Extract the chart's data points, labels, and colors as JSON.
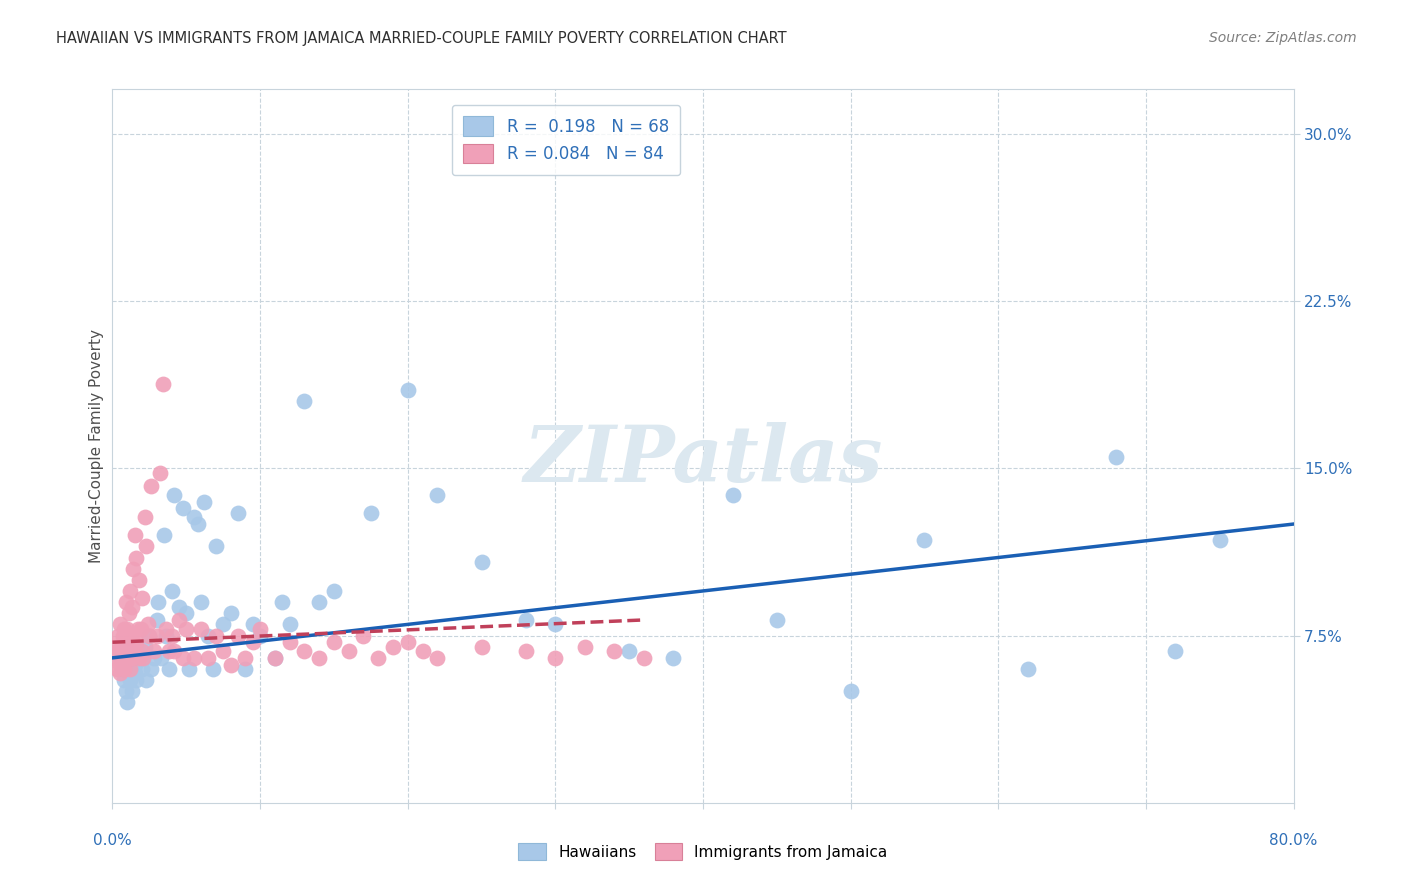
{
  "title": "HAWAIIAN VS IMMIGRANTS FROM JAMAICA MARRIED-COUPLE FAMILY POVERTY CORRELATION CHART",
  "source": "Source: ZipAtlas.com",
  "ylabel": "Married-Couple Family Poverty",
  "xlim": [
    0.0,
    0.8
  ],
  "ylim": [
    0.0,
    0.32
  ],
  "yticks": [
    0.075,
    0.15,
    0.225,
    0.3
  ],
  "ytick_labels": [
    "7.5%",
    "15.0%",
    "22.5%",
    "30.0%"
  ],
  "legend1_R": "0.198",
  "legend1_N": "68",
  "legend2_R": "0.084",
  "legend2_N": "84",
  "hawaiian_color": "#a8c8e8",
  "jamaica_color": "#f0a0b8",
  "trendline_hawaii_color": "#1a5fb4",
  "trendline_jamaica_color": "#c0405a",
  "watermark": "ZIPatlas",
  "watermark_color": "#dce8f0",
  "background_color": "#ffffff",
  "grid_color": "#c8d4dc",
  "title_color": "#303030",
  "axis_label_color": "#505050",
  "tick_label_color": "#3070b8",
  "hawaiians_x": [
    0.005,
    0.007,
    0.008,
    0.009,
    0.01,
    0.01,
    0.01,
    0.011,
    0.012,
    0.013,
    0.015,
    0.015,
    0.016,
    0.018,
    0.02,
    0.021,
    0.022,
    0.023,
    0.025,
    0.026,
    0.028,
    0.03,
    0.031,
    0.033,
    0.035,
    0.036,
    0.038,
    0.04,
    0.042,
    0.045,
    0.048,
    0.05,
    0.052,
    0.055,
    0.058,
    0.06,
    0.062,
    0.065,
    0.068,
    0.07,
    0.075,
    0.08,
    0.085,
    0.09,
    0.095,
    0.1,
    0.11,
    0.115,
    0.12,
    0.13,
    0.14,
    0.15,
    0.175,
    0.2,
    0.22,
    0.25,
    0.28,
    0.3,
    0.35,
    0.38,
    0.42,
    0.45,
    0.5,
    0.55,
    0.62,
    0.68,
    0.72,
    0.75
  ],
  "hawaiians_y": [
    0.065,
    0.06,
    0.055,
    0.05,
    0.065,
    0.045,
    0.07,
    0.06,
    0.055,
    0.05,
    0.062,
    0.058,
    0.055,
    0.068,
    0.06,
    0.065,
    0.07,
    0.055,
    0.075,
    0.06,
    0.065,
    0.082,
    0.09,
    0.065,
    0.12,
    0.075,
    0.06,
    0.095,
    0.138,
    0.088,
    0.132,
    0.085,
    0.06,
    0.128,
    0.125,
    0.09,
    0.135,
    0.075,
    0.06,
    0.115,
    0.08,
    0.085,
    0.13,
    0.06,
    0.08,
    0.075,
    0.065,
    0.09,
    0.08,
    0.18,
    0.09,
    0.095,
    0.13,
    0.185,
    0.138,
    0.108,
    0.082,
    0.08,
    0.068,
    0.065,
    0.138,
    0.082,
    0.05,
    0.118,
    0.06,
    0.155,
    0.068,
    0.118
  ],
  "jamaica_x": [
    0.002,
    0.003,
    0.003,
    0.004,
    0.004,
    0.005,
    0.005,
    0.005,
    0.006,
    0.006,
    0.007,
    0.007,
    0.008,
    0.008,
    0.008,
    0.009,
    0.009,
    0.01,
    0.01,
    0.01,
    0.01,
    0.011,
    0.011,
    0.012,
    0.012,
    0.013,
    0.013,
    0.014,
    0.014,
    0.015,
    0.015,
    0.016,
    0.016,
    0.017,
    0.018,
    0.018,
    0.019,
    0.02,
    0.02,
    0.021,
    0.022,
    0.023,
    0.024,
    0.025,
    0.026,
    0.028,
    0.03,
    0.032,
    0.034,
    0.036,
    0.038,
    0.04,
    0.042,
    0.045,
    0.048,
    0.05,
    0.055,
    0.06,
    0.065,
    0.07,
    0.075,
    0.08,
    0.085,
    0.09,
    0.095,
    0.1,
    0.11,
    0.12,
    0.13,
    0.14,
    0.15,
    0.16,
    0.17,
    0.18,
    0.19,
    0.2,
    0.21,
    0.22,
    0.25,
    0.28,
    0.3,
    0.32,
    0.34,
    0.36
  ],
  "jamaica_y": [
    0.065,
    0.07,
    0.06,
    0.068,
    0.075,
    0.062,
    0.058,
    0.08,
    0.07,
    0.065,
    0.075,
    0.068,
    0.072,
    0.06,
    0.078,
    0.065,
    0.09,
    0.065,
    0.072,
    0.078,
    0.068,
    0.075,
    0.085,
    0.06,
    0.095,
    0.065,
    0.088,
    0.072,
    0.105,
    0.068,
    0.12,
    0.072,
    0.11,
    0.078,
    0.065,
    0.1,
    0.078,
    0.068,
    0.092,
    0.065,
    0.128,
    0.115,
    0.08,
    0.075,
    0.142,
    0.068,
    0.075,
    0.148,
    0.188,
    0.078,
    0.068,
    0.075,
    0.068,
    0.082,
    0.065,
    0.078,
    0.065,
    0.078,
    0.065,
    0.075,
    0.068,
    0.062,
    0.075,
    0.065,
    0.072,
    0.078,
    0.065,
    0.072,
    0.068,
    0.065,
    0.072,
    0.068,
    0.075,
    0.065,
    0.07,
    0.072,
    0.068,
    0.065,
    0.07,
    0.068,
    0.065,
    0.07,
    0.068,
    0.065
  ]
}
